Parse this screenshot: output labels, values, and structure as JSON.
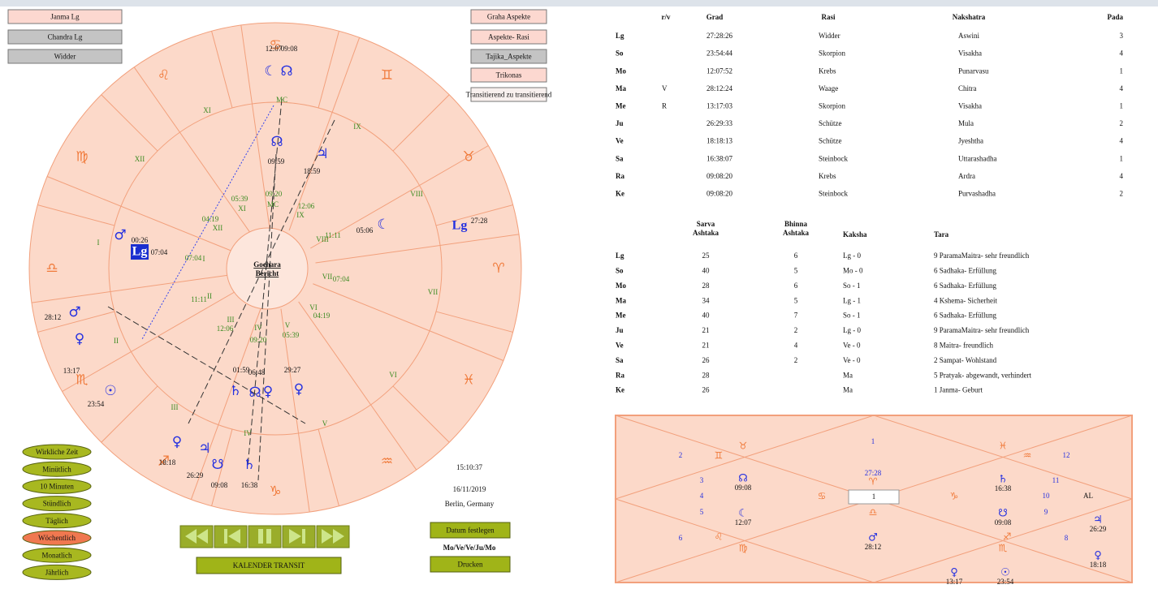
{
  "left_buttons": [
    "Janma Lg",
    "Chandra Lg",
    "Widder"
  ],
  "right_buttons": [
    "Graha Aspekte",
    "Aspekte- Rasi",
    "Tajika_Aspekte",
    "Trikonas",
    "Transitierend zu transitierend"
  ],
  "wheel": {
    "center": [
      "Gochara",
      "Bericht"
    ],
    "signs": [
      "♈",
      "♉",
      "♊",
      "♋",
      "♌",
      "♍",
      "♎",
      "♏",
      "♐",
      "♑",
      "♒",
      "♓"
    ],
    "planets": [
      {
        "symbol": "☾",
        "degree": "12:07"
      },
      {
        "symbol": "☊",
        "degree": "09:08"
      },
      {
        "symbol": "☊",
        "degree": "09:59"
      },
      {
        "symbol": "♃",
        "degree": "18:59"
      },
      {
        "symbol": "☾",
        "degree": "05:06"
      },
      {
        "symbol": "Lg",
        "degree": "27:28"
      },
      {
        "symbol": "♂",
        "degree": "00:26"
      },
      {
        "symbol": "Lg",
        "degree": "07:04"
      },
      {
        "symbol": "♂",
        "degree": "28:12"
      },
      {
        "symbol": "♀",
        "degree": "13:17"
      },
      {
        "symbol": "☉",
        "degree": "23:54"
      },
      {
        "symbol": "♄",
        "degree": "01:59"
      },
      {
        "symbol": "☊",
        "degree": "06:48"
      },
      {
        "symbol": "♀"
      },
      {
        "symbol": "♀",
        "degree": "29:27"
      },
      {
        "symbol": "♀",
        "degree": "18:18"
      },
      {
        "symbol": "♃",
        "degree": "26:29"
      },
      {
        "symbol": "☋",
        "degree": "09:08"
      },
      {
        "symbol": "♄",
        "degree": "16:38"
      }
    ],
    "house_labels": [
      "XI",
      "XII",
      "I",
      "II",
      "III",
      "IV",
      "V",
      "VI",
      "VII",
      "VIII",
      "IX",
      "MC",
      "05:39",
      "XI",
      "09:20",
      "MC",
      "12:06",
      "IX",
      "04:19",
      "XII",
      "07:04",
      "I",
      "11:11",
      "II",
      "III",
      "12:06",
      "IV",
      "09:20",
      "V",
      "05:39",
      "VI",
      "04:19",
      "VII",
      "07:04",
      "VIII",
      "11:11"
    ]
  },
  "planet_table": {
    "headers": {
      "rv": "r/v",
      "grad": "Grad",
      "rasi": "Rasi",
      "nakshatra": "Nakshatra",
      "pada": "Pada"
    },
    "rows": [
      {
        "planet": "Lg",
        "grad": "27:28:26",
        "rasi": "Widder",
        "nakshatra": "Aswini",
        "pada": 3
      },
      {
        "planet": "So",
        "grad": "23:54:44",
        "rasi": "Skorpion",
        "nakshatra": "Visakha",
        "pada": 4
      },
      {
        "planet": "Mo",
        "grad": "12:07:52",
        "rasi": "Krebs",
        "nakshatra": "Punarvasu",
        "pada": 1
      },
      {
        "planet": "Ma",
        "rv": "V",
        "grad": "28:12:24",
        "rasi": "Waage",
        "nakshatra": "Chitra",
        "pada": 4
      },
      {
        "planet": "Me",
        "rv": "R",
        "grad": "13:17:03",
        "rasi": "Skorpion",
        "nakshatra": "Visakha",
        "pada": 1
      },
      {
        "planet": "Ju",
        "grad": "26:29:33",
        "rasi": "Schütze",
        "nakshatra": "Mula",
        "pada": 2
      },
      {
        "planet": "Ve",
        "grad": "18:18:13",
        "rasi": "Schütze",
        "nakshatra": "Jyeshtha",
        "pada": 4
      },
      {
        "planet": "Sa",
        "grad": "16:38:07",
        "rasi": "Steinbock",
        "nakshatra": "Uttarashadha",
        "pada": 1
      },
      {
        "planet": "Ra",
        "grad": "09:08:20",
        "rasi": "Krebs",
        "nakshatra": "Ardra",
        "pada": 4
      },
      {
        "planet": "Ke",
        "grad": "09:08:20",
        "rasi": "Steinbock",
        "nakshatra": "Purvashadha",
        "pada": 2
      }
    ]
  },
  "ashtaka_table": {
    "headers": {
      "sarva": [
        "Sarva",
        "Ashtaka"
      ],
      "bhinna": [
        "Bhinna",
        "Ashtaka"
      ],
      "kaksha": "Kaksha",
      "tara": "Tara"
    },
    "rows": [
      {
        "planet": "Lg",
        "sarva": 25,
        "bhinna": 6,
        "kaksha": "Lg - 0",
        "tara": "9 ParamaMaitra- sehr freundlich"
      },
      {
        "planet": "So",
        "sarva": 40,
        "bhinna": 5,
        "kaksha": "Mo - 0",
        "tara": "6 Sadhaka- Erfüllung"
      },
      {
        "planet": "Mo",
        "sarva": 28,
        "bhinna": 6,
        "kaksha": "So - 1",
        "tara": "6 Sadhaka- Erfüllung"
      },
      {
        "planet": "Ma",
        "sarva": 34,
        "bhinna": 5,
        "kaksha": "Lg - 1",
        "tara": "4 Kshema- Sicherheit"
      },
      {
        "planet": "Me",
        "sarva": 40,
        "bhinna": 7,
        "kaksha": "So - 1",
        "tara": "6 Sadhaka- Erfüllung"
      },
      {
        "planet": "Ju",
        "sarva": 21,
        "bhinna": 2,
        "kaksha": "Lg - 0",
        "tara": "9 ParamaMaitra- sehr freundlich"
      },
      {
        "planet": "Ve",
        "sarva": 21,
        "bhinna": 4,
        "kaksha": "Ve - 0",
        "tara": "8 Maitra- freundlich"
      },
      {
        "planet": "Sa",
        "sarva": 26,
        "bhinna": 2,
        "kaksha": "Ve - 0",
        "tara": "2 Sampat- Wohlstand"
      },
      {
        "planet": "Ra",
        "sarva": 28,
        "kaksha": "Ma",
        "tara": "5 Pratyak- abgewandt, verhindert"
      },
      {
        "planet": "Ke",
        "sarva": 26,
        "kaksha": "Ma",
        "tara": "1 Janma- Geburt"
      }
    ]
  },
  "time_buttons": [
    "Wirkliche Zeit",
    "Minütlich",
    "10 Minuten",
    "Stündlich",
    "Täglich",
    "Wöchentlich",
    "Monatlich",
    "Jährlich"
  ],
  "selected_time_button": "Wöchentlich",
  "info": {
    "time": "15:10:37",
    "date": "16/11/2019",
    "place": "Berlin, Germany",
    "set_date": "Datum festlegen",
    "dasha": "Mo/Ve/Ve/Ju/Mo",
    "print": "Drucken",
    "calendar": "KALENDER TRANSIT"
  },
  "north_chart": {
    "numbers": [
      1,
      2,
      3,
      4,
      5,
      6,
      8,
      9,
      10,
      11,
      12
    ],
    "input": 1,
    "al": "AL",
    "lagna_degree": "27:28",
    "signs": [
      "♉",
      "♊",
      "♋",
      "♈",
      "♎",
      "♌",
      "♍",
      "♓",
      "♒",
      "♑",
      "♐",
      "♏"
    ],
    "planets": [
      {
        "symbol": "☊",
        "degree": "09:08"
      },
      {
        "symbol": "☾",
        "degree": "12:07"
      },
      {
        "symbol": "♂",
        "degree": "28:12"
      },
      {
        "symbol": "♄",
        "degree": "16:38"
      },
      {
        "symbol": "☋",
        "degree": "09:08"
      },
      {
        "symbol": "♃",
        "degree": "26:29"
      },
      {
        "symbol": "♀",
        "degree": "18:18"
      },
      {
        "symbol": "♀",
        "degree": "13:17"
      },
      {
        "symbol": "☉",
        "degree": "23:54"
      }
    ]
  }
}
